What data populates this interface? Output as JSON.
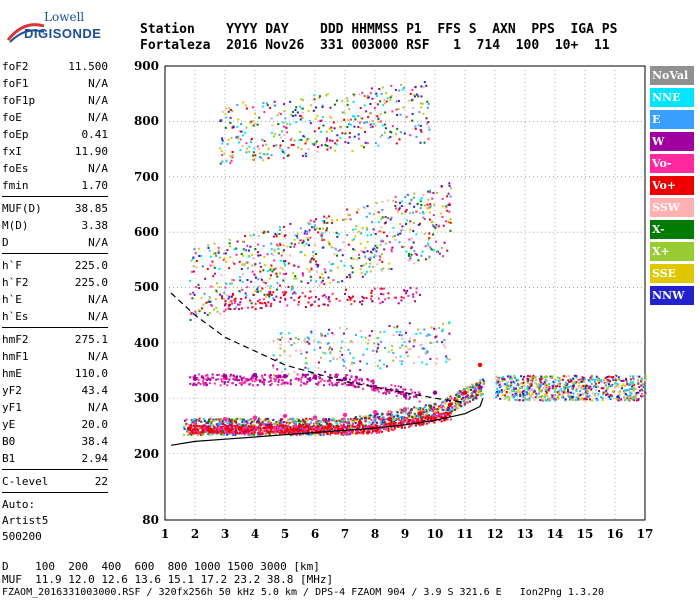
{
  "logo": {
    "line1": "Lowell",
    "line2": "DIGISONDE"
  },
  "header": {
    "labels": "Station    YYYY DAY    DDD HHMMSS P1  FFS S  AXN  PPS  IGA PS",
    "values": "Fortaleza  2016 Nov26  331 003000 RSF   1  714  100  10+  11"
  },
  "params": {
    "group1": [
      {
        "name": "foF2",
        "value": "11.500"
      },
      {
        "name": "foF1",
        "value": "N/A"
      },
      {
        "name": "foF1p",
        "value": "N/A"
      },
      {
        "name": "foE",
        "value": "N/A"
      },
      {
        "name": "foEp",
        "value": "0.41"
      },
      {
        "name": "fxI",
        "value": "11.90"
      },
      {
        "name": "foEs",
        "value": "N/A"
      },
      {
        "name": "fmin",
        "value": "1.70"
      }
    ],
    "group2": [
      {
        "name": "MUF(D)",
        "value": "38.85"
      },
      {
        "name": "M(D)",
        "value": "3.38"
      },
      {
        "name": "D",
        "value": "N/A"
      }
    ],
    "group3": [
      {
        "name": "h`F",
        "value": "225.0"
      },
      {
        "name": "h`F2",
        "value": "225.0"
      },
      {
        "name": "h`E",
        "value": "N/A"
      },
      {
        "name": "h`Es",
        "value": "N/A"
      }
    ],
    "group4": [
      {
        "name": "hmF2",
        "value": "275.1"
      },
      {
        "name": "hmF1",
        "value": "N/A"
      },
      {
        "name": "hmE",
        "value": "110.0"
      },
      {
        "name": "yF2",
        "value": "43.4"
      },
      {
        "name": "yF1",
        "value": "N/A"
      },
      {
        "name": "yE",
        "value": "20.0"
      },
      {
        "name": "B0",
        "value": "38.4"
      },
      {
        "name": "B1",
        "value": "2.94"
      }
    ],
    "group5": [
      {
        "name": "C-level",
        "value": "22"
      }
    ],
    "auto": [
      "Auto:",
      "Artist5",
      "500200"
    ]
  },
  "legend": [
    {
      "label": "NoVal",
      "color": "#909090"
    },
    {
      "label": "NNE",
      "color": "#00e5ff"
    },
    {
      "label": "E",
      "color": "#3aa0ff"
    },
    {
      "label": "W",
      "color": "#a000a0"
    },
    {
      "label": "Vo-",
      "color": "#ff2aa0"
    },
    {
      "label": "Vo+",
      "color": "#ee0000"
    },
    {
      "label": "SSW",
      "color": "#ffb0b0"
    },
    {
      "label": "X-",
      "color": "#007a00"
    },
    {
      "label": "X+",
      "color": "#99cc33"
    },
    {
      "label": "SSE",
      "color": "#e0c800"
    },
    {
      "label": "NNW",
      "color": "#2222cc"
    }
  ],
  "chart_data": {
    "type": "scatter",
    "title": "",
    "xlabel": "",
    "ylabel": "",
    "xlim": [
      1,
      17
    ],
    "ylim": [
      80,
      900
    ],
    "x_ticks": [
      "1",
      "2",
      "3",
      "4",
      "5",
      "6",
      "7",
      "8",
      "9",
      "10",
      "11",
      "12",
      "13",
      "14",
      "15",
      "16",
      "17"
    ],
    "y_ticks": [
      "80",
      "200",
      "300",
      "400",
      "500",
      "600",
      "700",
      "800",
      "900"
    ],
    "series": [
      {
        "name": "Vo+",
        "points": [
          [
            1.8,
            245
          ],
          [
            2.5,
            240
          ],
          [
            3.5,
            245
          ],
          [
            4.5,
            248
          ],
          [
            5.5,
            250
          ],
          [
            6.5,
            252
          ],
          [
            7.5,
            256
          ],
          [
            8.5,
            262
          ],
          [
            9.5,
            272
          ],
          [
            10.5,
            288
          ],
          [
            11.0,
            310
          ],
          [
            11.5,
            360
          ]
        ]
      },
      {
        "name": "W",
        "points": [
          [
            2,
            335
          ],
          [
            3,
            340
          ],
          [
            4,
            342
          ],
          [
            5,
            340
          ],
          [
            6,
            338
          ],
          [
            7,
            335
          ],
          [
            8,
            320
          ],
          [
            9,
            305
          ],
          [
            10,
            310
          ]
        ]
      },
      {
        "name": "Vo-",
        "points": [
          [
            2,
            255
          ],
          [
            3,
            262
          ],
          [
            4,
            265
          ],
          [
            5,
            268
          ],
          [
            6,
            265
          ],
          [
            7,
            270
          ],
          [
            8,
            275
          ],
          [
            9,
            280
          ]
        ]
      }
    ],
    "curves": [
      {
        "name": "solid",
        "points": [
          [
            1.2,
            215
          ],
          [
            2,
            222
          ],
          [
            3,
            226
          ],
          [
            4,
            230
          ],
          [
            5,
            234
          ],
          [
            6,
            238
          ],
          [
            7,
            242
          ],
          [
            8,
            246
          ],
          [
            9,
            252
          ],
          [
            10,
            260
          ],
          [
            11,
            272
          ],
          [
            11.5,
            285
          ],
          [
            11.6,
            300
          ]
        ]
      },
      {
        "name": "dashed",
        "points": [
          [
            1.2,
            490
          ],
          [
            2,
            450
          ],
          [
            3,
            410
          ],
          [
            4,
            385
          ],
          [
            5,
            360
          ],
          [
            6,
            345
          ],
          [
            7,
            330
          ],
          [
            8,
            320
          ],
          [
            9,
            310
          ],
          [
            10,
            300
          ],
          [
            11,
            292
          ]
        ]
      }
    ]
  },
  "bottom": {
    "line1": "D    100  200  400  600  800 1000 1500 3000 [km]",
    "line2": "MUF  11.9 12.0 12.6 13.6 15.1 17.2 23.2 38.8 [MHz]",
    "line3": "FZAOM_2016331003000.RSF / 320fx256h 50 kHz 5.0 km / DPS-4 FZAOM 904 / 3.9 S 321.6 E   Ion2Png 1.3.20"
  }
}
